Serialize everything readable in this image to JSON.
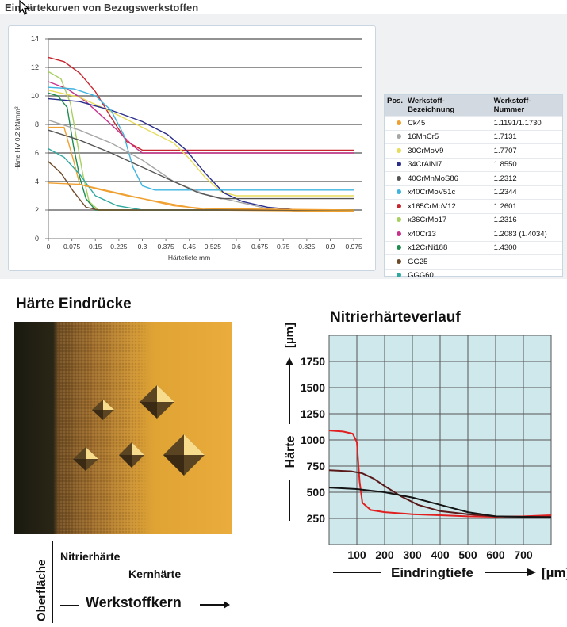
{
  "top_title": "Einhärtekurven von Bezugswerkstoffen",
  "photo_title": "Härte Eindrücke",
  "photo_labels": {
    "oberflaeche": "Oberfläche",
    "nitrierhaerte": "Nitrierhärte",
    "kernhaerte": "Kernhärte",
    "werkstoffkern": "Werkstoffkern"
  },
  "legend": {
    "headers": [
      "Pos.",
      "Werkstoff-Bezeichnung",
      "Werkstoff-Nummer"
    ],
    "rows": [
      {
        "color": "#f0a030",
        "name": "Ck45",
        "number": "1.1191/1.1730"
      },
      {
        "color": "#a6a6a6",
        "name": "16MnCr5",
        "number": "1.7131"
      },
      {
        "color": "#e8dc5a",
        "name": "30CrMoV9",
        "number": "1.7707"
      },
      {
        "color": "#2a2f8c",
        "name": "34CrAlNi7",
        "number": "1.8550"
      },
      {
        "color": "#555555",
        "name": "40CrMnMoS86",
        "number": "1.2312"
      },
      {
        "color": "#3fb4e0",
        "name": "x40CrMoV51c",
        "number": "1.2344"
      },
      {
        "color": "#c8262e",
        "name": "x165CrMoV12",
        "number": "1.2601"
      },
      {
        "color": "#a8d060",
        "name": "x36CrMo17",
        "number": "1.2316"
      },
      {
        "color": "#c8328c",
        "name": "x40Cr13",
        "number": "1.2083 (1.4034)"
      },
      {
        "color": "#1e8c50",
        "name": "x12CrNi188",
        "number": "1.4300"
      },
      {
        "color": "#6e4a2a",
        "name": "GG25",
        "number": ""
      },
      {
        "color": "#2fa8a0",
        "name": "GGG60",
        "number": ""
      }
    ]
  },
  "chart_data": [
    {
      "type": "line",
      "title": "Einhärtekurven von Bezugswerkstoffen",
      "xlabel": "Härtetiefe mm",
      "ylabel": "Härte HV 0.2 kN/mm²",
      "xlim": [
        0,
        1.0
      ],
      "ylim": [
        0,
        14
      ],
      "xticks": [
        "0",
        "0.075",
        "0.15",
        "0.225",
        "0.3",
        "0.375",
        "0.45",
        "0.525",
        "0.6",
        "0.675",
        "0.75",
        "0.825",
        "0.9",
        "0.975"
      ],
      "yticks": [
        "0",
        "2",
        "4",
        "6",
        "8",
        "10",
        "12",
        "14"
      ],
      "grid": "horizontal",
      "series": [
        {
          "color": "#c8262e",
          "points": [
            [
              0,
              12.7
            ],
            [
              0.05,
              12.4
            ],
            [
              0.1,
              11.6
            ],
            [
              0.15,
              10.3
            ],
            [
              0.2,
              8.5
            ],
            [
              0.25,
              6.8
            ],
            [
              0.3,
              6.2
            ],
            [
              0.4,
              6.2
            ],
            [
              0.6,
              6.2
            ],
            [
              0.975,
              6.2
            ]
          ]
        },
        {
          "color": "#c8328c",
          "points": [
            [
              0,
              11.0
            ],
            [
              0.06,
              10.5
            ],
            [
              0.12,
              9.6
            ],
            [
              0.17,
              8.6
            ],
            [
              0.22,
              7.6
            ],
            [
              0.27,
              6.5
            ],
            [
              0.3,
              6.0
            ],
            [
              0.5,
              6.0
            ],
            [
              0.975,
              6.0
            ]
          ]
        },
        {
          "color": "#a8d060",
          "points": [
            [
              0,
              11.7
            ],
            [
              0.04,
              11.2
            ],
            [
              0.07,
              9.5
            ],
            [
              0.09,
              7.0
            ],
            [
              0.11,
              4.5
            ],
            [
              0.13,
              2.6
            ],
            [
              0.16,
              2.0
            ],
            [
              0.975,
              2.0
            ]
          ]
        },
        {
          "color": "#e8dc5a",
          "points": [
            [
              0,
              10.4
            ],
            [
              0.1,
              9.9
            ],
            [
              0.2,
              8.9
            ],
            [
              0.3,
              7.8
            ],
            [
              0.4,
              6.7
            ],
            [
              0.45,
              5.6
            ],
            [
              0.5,
              4.3
            ],
            [
              0.55,
              3.3
            ],
            [
              0.6,
              3.0
            ],
            [
              0.975,
              3.0
            ]
          ]
        },
        {
          "color": "#2a2f8c",
          "points": [
            [
              0,
              9.8
            ],
            [
              0.1,
              9.6
            ],
            [
              0.2,
              9.0
            ],
            [
              0.3,
              8.2
            ],
            [
              0.38,
              7.3
            ],
            [
              0.44,
              6.2
            ],
            [
              0.5,
              4.6
            ],
            [
              0.56,
              3.2
            ],
            [
              0.62,
              2.6
            ],
            [
              0.7,
              2.2
            ],
            [
              0.8,
              2.0
            ],
            [
              0.975,
              2.0
            ]
          ]
        },
        {
          "color": "#3fb4e0",
          "points": [
            [
              0,
              10.6
            ],
            [
              0.08,
              10.5
            ],
            [
              0.15,
              10.0
            ],
            [
              0.2,
              9.0
            ],
            [
              0.24,
              7.3
            ],
            [
              0.27,
              5.0
            ],
            [
              0.3,
              3.7
            ],
            [
              0.34,
              3.4
            ],
            [
              0.975,
              3.4
            ]
          ]
        },
        {
          "color": "#1e8c50",
          "points": [
            [
              0,
              10.2
            ],
            [
              0.03,
              10.0
            ],
            [
              0.06,
              9.2
            ],
            [
              0.08,
              6.5
            ],
            [
              0.1,
              4.3
            ],
            [
              0.12,
              2.8
            ],
            [
              0.15,
              2.0
            ],
            [
              0.975,
              2.0
            ]
          ]
        },
        {
          "color": "#a6a6a6",
          "points": [
            [
              0,
              8.3
            ],
            [
              0.1,
              7.6
            ],
            [
              0.2,
              6.7
            ],
            [
              0.3,
              5.5
            ],
            [
              0.4,
              4.0
            ],
            [
              0.5,
              3.1
            ],
            [
              0.6,
              2.6
            ],
            [
              0.7,
              2.1
            ],
            [
              0.8,
              1.9
            ],
            [
              0.975,
              1.9
            ]
          ]
        },
        {
          "color": "#555555",
          "points": [
            [
              0,
              7.6
            ],
            [
              0.1,
              6.9
            ],
            [
              0.2,
              6.0
            ],
            [
              0.3,
              5.0
            ],
            [
              0.4,
              4.0
            ],
            [
              0.48,
              3.2
            ],
            [
              0.55,
              2.8
            ],
            [
              0.975,
              2.8
            ]
          ]
        },
        {
          "color": "#f0a030",
          "points": [
            [
              0,
              7.8
            ],
            [
              0.05,
              7.8
            ],
            [
              0.08,
              5.5
            ],
            [
              0.1,
              3.8
            ],
            [
              0.15,
              3.5
            ],
            [
              0.25,
              3.0
            ],
            [
              0.4,
              2.4
            ],
            [
              0.5,
              2.0
            ],
            [
              0.975,
              1.9
            ]
          ]
        },
        {
          "color": "#2fa8a0",
          "points": [
            [
              0,
              6.3
            ],
            [
              0.05,
              5.7
            ],
            [
              0.1,
              4.5
            ],
            [
              0.15,
              3.0
            ],
            [
              0.22,
              2.3
            ],
            [
              0.3,
              2.0
            ],
            [
              0.975,
              2.0
            ]
          ]
        },
        {
          "color": "#6e4a2a",
          "points": [
            [
              0,
              5.4
            ],
            [
              0.04,
              4.6
            ],
            [
              0.08,
              3.3
            ],
            [
              0.12,
              2.2
            ],
            [
              0.16,
              2.0
            ],
            [
              0.975,
              2.0
            ]
          ]
        },
        {
          "color": "#f0a030",
          "points": [
            [
              0,
              3.9
            ],
            [
              0.1,
              3.8
            ],
            [
              0.2,
              3.3
            ],
            [
              0.3,
              2.8
            ],
            [
              0.4,
              2.3
            ],
            [
              0.5,
              2.1
            ],
            [
              0.975,
              2.0
            ]
          ]
        }
      ]
    },
    {
      "type": "line",
      "title": "Nitrierhärteverlauf",
      "xlabel": "Eindringtiefe",
      "ylabel": "Härte",
      "x_unit": "[µm]",
      "y_unit": "[µm]",
      "xlim": [
        0,
        800
      ],
      "ylim": [
        0,
        2000
      ],
      "xticks": [
        "100",
        "200",
        "300",
        "400",
        "500",
        "600",
        "700"
      ],
      "yticks": [
        "250",
        "500",
        "750",
        "1000",
        "1250",
        "1500",
        "1750"
      ],
      "grid": true,
      "series": [
        {
          "color": "#e02020",
          "points": [
            [
              0,
              1090
            ],
            [
              50,
              1080
            ],
            [
              85,
              1060
            ],
            [
              100,
              980
            ],
            [
              110,
              600
            ],
            [
              120,
              400
            ],
            [
              150,
              330
            ],
            [
              200,
              310
            ],
            [
              300,
              290
            ],
            [
              400,
              280
            ],
            [
              500,
              270
            ],
            [
              600,
              265
            ],
            [
              700,
              270
            ],
            [
              800,
              280
            ]
          ]
        },
        {
          "color": "#5a1a1a",
          "points": [
            [
              0,
              710
            ],
            [
              80,
              700
            ],
            [
              120,
              680
            ],
            [
              160,
              630
            ],
            [
              200,
              560
            ],
            [
              260,
              460
            ],
            [
              320,
              380
            ],
            [
              400,
              320
            ],
            [
              500,
              290
            ],
            [
              600,
              270
            ],
            [
              700,
              265
            ],
            [
              800,
              265
            ]
          ]
        },
        {
          "color": "#141414",
          "points": [
            [
              0,
              545
            ],
            [
              100,
              530
            ],
            [
              200,
              500
            ],
            [
              300,
              450
            ],
            [
              400,
              380
            ],
            [
              500,
              310
            ],
            [
              600,
              270
            ],
            [
              700,
              265
            ],
            [
              800,
              260
            ]
          ]
        }
      ]
    }
  ]
}
